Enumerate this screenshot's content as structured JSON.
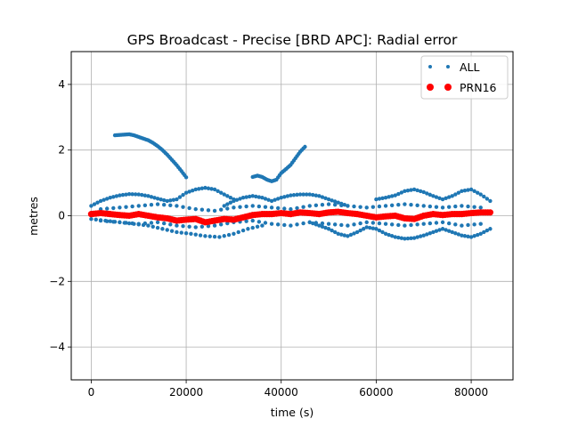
{
  "chart_data": {
    "type": "scatter",
    "title": "GPS Broadcast - Precise [BRD APC]: Radial error",
    "xlabel": "time (s)",
    "ylabel": "metres",
    "xlim": [
      -4200,
      88800
    ],
    "ylim": [
      -5,
      5
    ],
    "xticks": [
      0,
      20000,
      40000,
      60000,
      80000
    ],
    "xtick_labels": [
      "0",
      "20000",
      "40000",
      "60000",
      "80000"
    ],
    "yticks": [
      -4,
      -2,
      0,
      2,
      4
    ],
    "ytick_labels": [
      "−4",
      "−2",
      "0",
      "2",
      "4"
    ],
    "grid": true,
    "legend_position": "top-right",
    "colors": {
      "all": "#1f77b4",
      "prn16": "#ff0000"
    },
    "series": [
      {
        "name": "ALL",
        "marker": "small-dot",
        "tracks": [
          {
            "x": [
              5000,
              6000,
              7000,
              8000,
              9000,
              10000,
              11000,
              12000,
              13000,
              14000,
              15000,
              16000,
              17000,
              18000,
              19000,
              20000
            ],
            "y": [
              2.45,
              2.46,
              2.47,
              2.48,
              2.45,
              2.4,
              2.35,
              2.3,
              2.22,
              2.12,
              2.0,
              1.86,
              1.7,
              1.54,
              1.36,
              1.17
            ]
          },
          {
            "x": [
              34000,
              35000,
              36000,
              37000,
              38000,
              39000,
              40000,
              41000,
              42000,
              43000,
              44000,
              45000
            ],
            "y": [
              1.18,
              1.22,
              1.18,
              1.1,
              1.05,
              1.1,
              1.3,
              1.42,
              1.55,
              1.75,
              1.95,
              2.1
            ]
          },
          {
            "x": [
              0,
              2000,
              4000,
              6000,
              8000,
              10000,
              12000,
              14000,
              16000,
              18000,
              20000,
              22000,
              24000,
              26000,
              28000,
              30000
            ],
            "y": [
              0.3,
              0.45,
              0.55,
              0.62,
              0.66,
              0.65,
              0.6,
              0.52,
              0.45,
              0.5,
              0.7,
              0.8,
              0.85,
              0.8,
              0.65,
              0.5
            ]
          },
          {
            "x": [
              28000,
              30000,
              32000,
              34000,
              36000,
              38000,
              40000,
              42000,
              44000,
              46000,
              48000,
              50000,
              52000,
              54000
            ],
            "y": [
              0.3,
              0.45,
              0.55,
              0.6,
              0.55,
              0.45,
              0.55,
              0.62,
              0.65,
              0.65,
              0.6,
              0.5,
              0.4,
              0.3
            ]
          },
          {
            "x": [
              60000,
              62000,
              64000,
              66000,
              68000,
              70000,
              72000,
              74000,
              76000,
              78000,
              80000,
              82000,
              84000
            ],
            "y": [
              0.5,
              0.55,
              0.62,
              0.75,
              0.8,
              0.72,
              0.6,
              0.5,
              0.6,
              0.75,
              0.8,
              0.65,
              0.45
            ]
          },
          {
            "x": [
              0,
              3000,
              6000,
              9000,
              12000,
              15000,
              18000,
              21000,
              24000,
              27000,
              30000,
              33000,
              36000
            ],
            "y": [
              -0.1,
              -0.15,
              -0.2,
              -0.25,
              -0.3,
              -0.4,
              -0.5,
              -0.55,
              -0.62,
              -0.65,
              -0.55,
              -0.4,
              -0.3
            ]
          },
          {
            "x": [
              46000,
              48000,
              50000,
              52000,
              54000,
              56000,
              58000,
              60000,
              62000,
              64000,
              66000,
              68000,
              70000,
              72000,
              74000,
              76000,
              78000,
              80000,
              82000,
              84000
            ],
            "y": [
              -0.2,
              -0.3,
              -0.4,
              -0.55,
              -0.62,
              -0.5,
              -0.35,
              -0.4,
              -0.55,
              -0.65,
              -0.7,
              -0.68,
              -0.6,
              -0.5,
              -0.4,
              -0.5,
              -0.6,
              -0.65,
              -0.55,
              -0.4
            ]
          },
          {
            "x": [
              2000,
              6000,
              10000,
              14000,
              18000,
              22000,
              26000,
              30000,
              34000,
              38000,
              42000,
              46000,
              50000,
              54000,
              58000,
              62000,
              66000,
              70000,
              74000,
              78000,
              82000
            ],
            "y": [
              0.2,
              0.25,
              0.3,
              0.35,
              0.3,
              0.2,
              0.15,
              0.25,
              0.3,
              0.25,
              0.2,
              0.3,
              0.35,
              0.3,
              0.25,
              0.3,
              0.35,
              0.3,
              0.25,
              0.3,
              0.25
            ]
          },
          {
            "x": [
              2000,
              6000,
              10000,
              14000,
              18000,
              22000,
              26000,
              30000,
              34000,
              38000,
              42000,
              46000,
              50000,
              54000,
              58000,
              62000,
              66000,
              70000,
              74000,
              78000,
              82000
            ],
            "y": [
              -0.15,
              -0.2,
              -0.25,
              -0.2,
              -0.3,
              -0.35,
              -0.3,
              -0.2,
              -0.15,
              -0.25,
              -0.3,
              -0.2,
              -0.25,
              -0.3,
              -0.2,
              -0.25,
              -0.3,
              -0.25,
              -0.2,
              -0.3,
              -0.25
            ]
          }
        ]
      },
      {
        "name": "PRN16",
        "marker": "large-dot",
        "x": [
          0,
          2000,
          4000,
          6000,
          8000,
          10000,
          12000,
          14000,
          16000,
          18000,
          20000,
          22000,
          24000,
          26000,
          28000,
          30000,
          32000,
          34000,
          36000,
          38000,
          40000,
          42000,
          44000,
          46000,
          48000,
          50000,
          52000,
          54000,
          56000,
          58000,
          60000,
          62000,
          64000,
          66000,
          68000,
          70000,
          72000,
          74000,
          76000,
          78000,
          80000,
          82000,
          84000
        ],
        "y": [
          0.05,
          0.08,
          0.05,
          0.02,
          0.0,
          0.05,
          0.0,
          -0.05,
          -0.08,
          -0.15,
          -0.12,
          -0.1,
          -0.2,
          -0.15,
          -0.1,
          -0.12,
          -0.05,
          0.02,
          0.05,
          0.05,
          0.08,
          0.05,
          0.1,
          0.08,
          0.05,
          0.1,
          0.12,
          0.08,
          0.05,
          0.0,
          -0.05,
          -0.02,
          0.0,
          -0.08,
          -0.1,
          0.0,
          0.05,
          0.02,
          0.05,
          0.05,
          0.08,
          0.1,
          0.1
        ]
      }
    ]
  }
}
